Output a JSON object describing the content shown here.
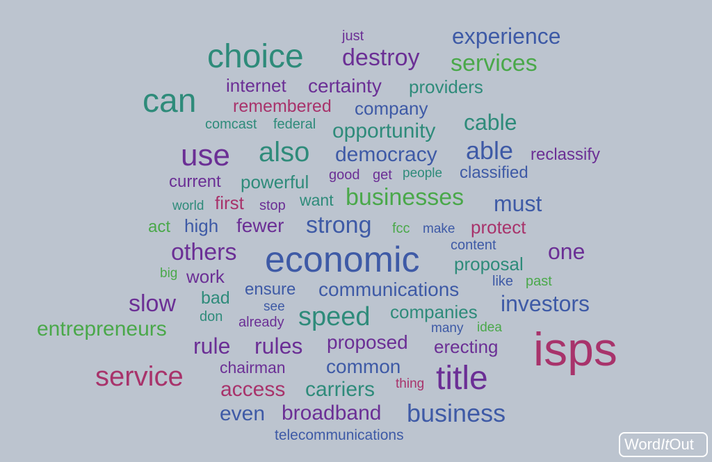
{
  "colors": {
    "background": "#bcc4cf",
    "teal": "#2e8b7a",
    "purple": "#6b2f95",
    "blue": "#3e5aa6",
    "green": "#4aa84a",
    "magenta": "#a8336b"
  },
  "logo": {
    "a": "Word",
    "b": "It",
    "c": "Out"
  },
  "words": [
    {
      "text": "just"
    },
    {
      "text": "experience"
    },
    {
      "text": "choice"
    },
    {
      "text": "destroy"
    },
    {
      "text": "services"
    },
    {
      "text": "can"
    },
    {
      "text": "internet"
    },
    {
      "text": "certainty"
    },
    {
      "text": "providers"
    },
    {
      "text": "remembered"
    },
    {
      "text": "company"
    },
    {
      "text": "comcast"
    },
    {
      "text": "federal"
    },
    {
      "text": "opportunity"
    },
    {
      "text": "cable"
    },
    {
      "text": "use"
    },
    {
      "text": "also"
    },
    {
      "text": "democracy"
    },
    {
      "text": "able"
    },
    {
      "text": "reclassify"
    },
    {
      "text": "good"
    },
    {
      "text": "get"
    },
    {
      "text": "people"
    },
    {
      "text": "classified"
    },
    {
      "text": "current"
    },
    {
      "text": "powerful"
    },
    {
      "text": "businesses"
    },
    {
      "text": "must"
    },
    {
      "text": "world"
    },
    {
      "text": "first"
    },
    {
      "text": "stop"
    },
    {
      "text": "want"
    },
    {
      "text": "act"
    },
    {
      "text": "high"
    },
    {
      "text": "fewer"
    },
    {
      "text": "strong"
    },
    {
      "text": "fcc"
    },
    {
      "text": "make"
    },
    {
      "text": "protect"
    },
    {
      "text": "content"
    },
    {
      "text": "others"
    },
    {
      "text": "economic"
    },
    {
      "text": "one"
    },
    {
      "text": "proposal"
    },
    {
      "text": "big"
    },
    {
      "text": "work"
    },
    {
      "text": "ensure"
    },
    {
      "text": "communications"
    },
    {
      "text": "like"
    },
    {
      "text": "past"
    },
    {
      "text": "slow"
    },
    {
      "text": "bad"
    },
    {
      "text": "see"
    },
    {
      "text": "speed"
    },
    {
      "text": "companies"
    },
    {
      "text": "investors"
    },
    {
      "text": "don"
    },
    {
      "text": "already"
    },
    {
      "text": "many"
    },
    {
      "text": "idea"
    },
    {
      "text": "entrepreneurs"
    },
    {
      "text": "isps"
    },
    {
      "text": "rule"
    },
    {
      "text": "rules"
    },
    {
      "text": "proposed"
    },
    {
      "text": "erecting"
    },
    {
      "text": "chairman"
    },
    {
      "text": "common"
    },
    {
      "text": "service"
    },
    {
      "text": "title"
    },
    {
      "text": "access"
    },
    {
      "text": "carriers"
    },
    {
      "text": "thing"
    },
    {
      "text": "even"
    },
    {
      "text": "broadband"
    },
    {
      "text": "business"
    },
    {
      "text": "telecommunications"
    }
  ]
}
